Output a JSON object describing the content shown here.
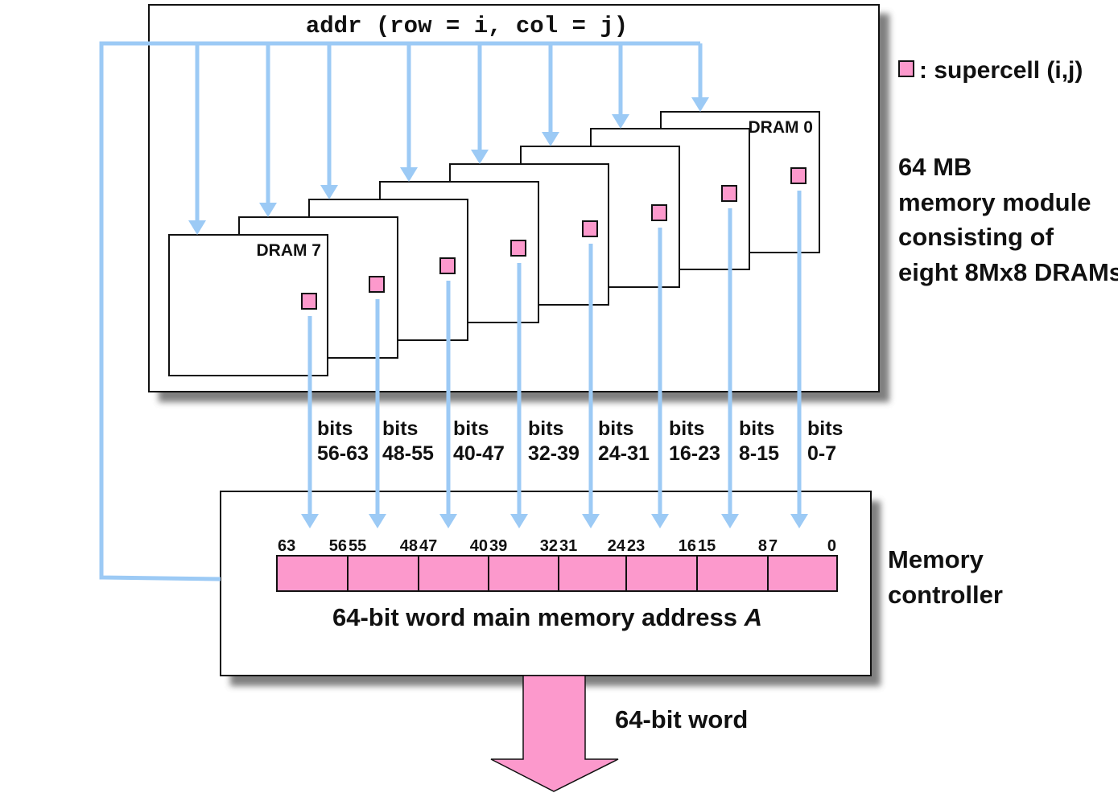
{
  "module": {
    "addr_label": "addr (row = i, col = j)",
    "chips": [
      "DRAM 7",
      "",
      "",
      "",
      "",
      "",
      "",
      "DRAM 0"
    ],
    "description_lines": [
      "64 MB",
      "memory module",
      "consisting of",
      "eight 8Mx8 DRAMs"
    ]
  },
  "legend": {
    "label": ": supercell (i,j)"
  },
  "bit_groups": [
    {
      "line1": "bits",
      "line2": "56-63"
    },
    {
      "line1": "bits",
      "line2": "48-55"
    },
    {
      "line1": "bits",
      "line2": "40-47"
    },
    {
      "line1": "bits",
      "line2": "32-39"
    },
    {
      "line1": "bits",
      "line2": "24-31"
    },
    {
      "line1": "bits",
      "line2": "16-23"
    },
    {
      "line1": "bits",
      "line2": "8-15"
    },
    {
      "line1": "bits",
      "line2": "0-7"
    }
  ],
  "controller": {
    "label_lines": [
      "Memory",
      "controller"
    ],
    "field_bounds": [
      [
        "63",
        "56"
      ],
      [
        "55",
        "48"
      ],
      [
        "47",
        "40"
      ],
      [
        "39",
        "32"
      ],
      [
        "31",
        "24"
      ],
      [
        "23",
        "16"
      ],
      [
        "15",
        "8"
      ],
      [
        "7",
        "0"
      ]
    ],
    "word_caption": "64-bit word main memory address",
    "word_caption_var": "A"
  },
  "output": {
    "label": "64-bit word"
  },
  "colors": {
    "arrow": "#9ccaf5",
    "supercell": "#fc99cc",
    "outline": "#111111",
    "shadow": "#666666"
  }
}
